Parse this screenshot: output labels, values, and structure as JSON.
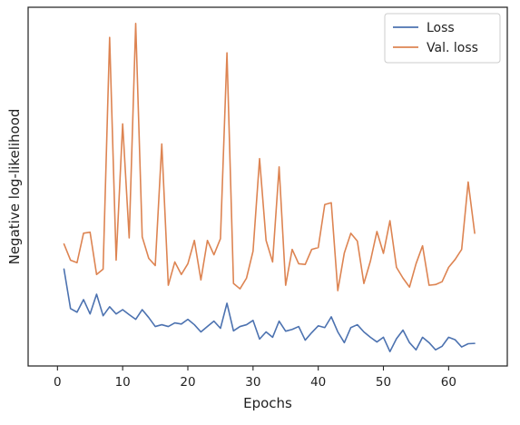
{
  "chart_data": {
    "type": "line",
    "title": "",
    "xlabel": "Epochs",
    "ylabel": "Negative log-likelihood",
    "xlim": [
      -4.5,
      69
    ],
    "ylim": [
      0,
      100
    ],
    "y_ticks_labeled": false,
    "x_ticks": [
      0,
      10,
      20,
      30,
      40,
      50,
      60
    ],
    "grid": false,
    "legend_position": "top-right",
    "x": [
      1,
      2,
      3,
      4,
      5,
      6,
      7,
      8,
      9,
      10,
      11,
      12,
      13,
      14,
      15,
      16,
      17,
      18,
      19,
      20,
      21,
      22,
      23,
      24,
      25,
      26,
      27,
      28,
      29,
      30,
      31,
      32,
      33,
      34,
      35,
      36,
      37,
      38,
      39,
      40,
      41,
      42,
      43,
      44,
      45,
      46,
      47,
      48,
      49,
      50,
      51,
      52,
      53,
      54,
      55,
      56,
      57,
      58,
      59,
      60,
      61,
      62,
      63,
      64
    ],
    "series": [
      {
        "name": "Loss",
        "color": "#4c72b0",
        "values": [
          27,
          16,
          15,
          18.5,
          14.5,
          20,
          14,
          16.5,
          14.5,
          15.7,
          14.3,
          13,
          15.7,
          13.5,
          11,
          11.5,
          11,
          12,
          11.7,
          13,
          11.5,
          9.5,
          11,
          12.5,
          10.5,
          17.5,
          9.8,
          11,
          11.5,
          12.7,
          7.5,
          9.5,
          8,
          12.5,
          9.7,
          10.2,
          11,
          7.2,
          9.3,
          11.2,
          10.7,
          13.7,
          9.5,
          6.5,
          10.7,
          11.5,
          9.5,
          8,
          6.7,
          8,
          4,
          7.6,
          10,
          6.5,
          4.5,
          8,
          6.5,
          4.5,
          5.5,
          8,
          7.3,
          5.3,
          6.2,
          6.3
        ]
      },
      {
        "name": "Val. loss",
        "color": "#dd8452",
        "values": [
          34,
          29.5,
          28.8,
          37,
          37.3,
          25.5,
          27,
          91.6,
          29.5,
          67.5,
          35.7,
          95.5,
          36,
          30,
          28,
          61.9,
          22.5,
          29,
          25.5,
          28.5,
          35,
          24,
          35,
          31,
          35.5,
          87.3,
          23,
          21.5,
          24.5,
          32,
          57.8,
          35,
          29,
          55.5,
          22.5,
          32.5,
          28.5,
          28.3,
          32.5,
          33,
          45,
          45.5,
          21,
          31.5,
          37,
          34.8,
          23,
          29.2,
          37.5,
          31.4,
          40.5,
          27.5,
          24.5,
          22,
          28.5,
          33.5,
          22.5,
          22.7,
          23.5,
          27.5,
          29.7,
          32.5,
          51.3,
          37
        ]
      }
    ]
  }
}
